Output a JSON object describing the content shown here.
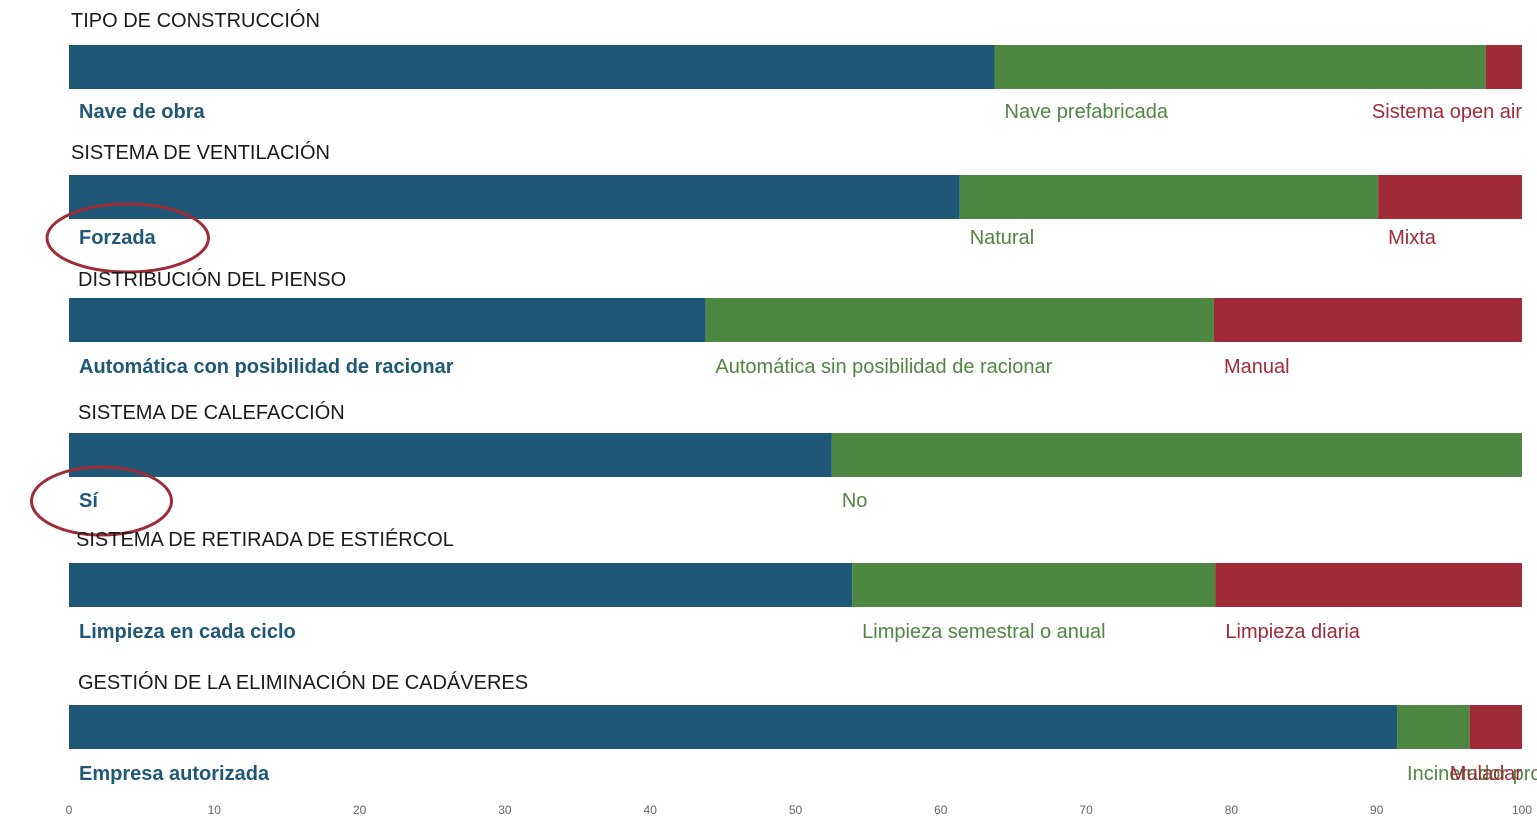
{
  "colors": {
    "blue": "#1f5777",
    "green": "#4e8741",
    "red": "#a02a38",
    "circle": "#9e2b36"
  },
  "chart_data": {
    "type": "bar",
    "orientation": "horizontal-stacked-100",
    "xlim": [
      0,
      100
    ],
    "x_ticks": [
      "0",
      "10",
      "20",
      "30",
      "40",
      "50",
      "60",
      "70",
      "80",
      "90",
      "100"
    ],
    "groups": [
      {
        "title": "TIPO DE CONSTRUCCIÓN",
        "segments": [
          {
            "name": "Nave de obra",
            "value": 63.7
          },
          {
            "name": "Nave prefabricada",
            "value": 33.8
          },
          {
            "name": "Sistema open air",
            "value": 2.5
          }
        ]
      },
      {
        "title": "SISTEMA DE VENTILACIÓN",
        "segments": [
          {
            "name": "Forzada",
            "value": 61.3
          },
          {
            "name": "Natural",
            "value": 28.8
          },
          {
            "name": "Mixta",
            "value": 9.9
          }
        ],
        "highlight": "Forzada"
      },
      {
        "title": "DISTRIBUCIÓN DEL PIENSO",
        "segments": [
          {
            "name": "Automática con posibilidad de racionar",
            "value": 43.8
          },
          {
            "name": "Automática sin posibilidad de racionar",
            "value": 35.0
          },
          {
            "name": "Manual",
            "value": 21.2
          }
        ]
      },
      {
        "title": "SISTEMA DE CALEFACCIÓN",
        "segments": [
          {
            "name": "Sí",
            "value": 52.5
          },
          {
            "name": "No",
            "value": 47.5
          }
        ],
        "highlight": "Sí"
      },
      {
        "title": "SISTEMA DE RETIRADA DE ESTIÉRCOL",
        "segments": [
          {
            "name": "Limpieza en cada ciclo",
            "value": 53.9
          },
          {
            "name": "Limpieza semestral o anual",
            "value": 25.0
          },
          {
            "name": "Limpieza diaria",
            "value": 21.1
          }
        ]
      },
      {
        "title": "GESTIÓN DE LA ELIMINACIÓN DE CADÁVERES",
        "segments": [
          {
            "name": "Empresa autorizada",
            "value": 91.4
          },
          {
            "name": "Incinerador propio",
            "value": 5.0
          },
          {
            "name": "Muladar",
            "value": 3.6
          }
        ]
      }
    ]
  }
}
